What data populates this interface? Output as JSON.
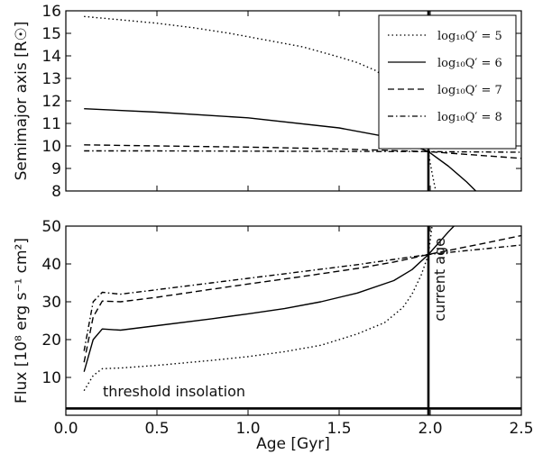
{
  "chart_data": [
    {
      "type": "line",
      "ylabel": "Semimajor axis [R☉]",
      "xlim": [
        0.0,
        2.5
      ],
      "ylim": [
        8,
        16
      ],
      "yticks": [
        8,
        9,
        10,
        11,
        12,
        13,
        14,
        15,
        16
      ],
      "ytick_labels": [
        "8",
        "9",
        "10",
        "11",
        "12",
        "13",
        "14",
        "15",
        "16"
      ],
      "legend_position": "top-right",
      "series": [
        {
          "name": "log₁₀Q′ = 5",
          "style": "dotted",
          "x": [
            0.1,
            0.3,
            0.5,
            0.7,
            0.9,
            1.1,
            1.3,
            1.5,
            1.6,
            1.7,
            1.8,
            1.9,
            1.95,
            1.99,
            2.01,
            2.03
          ],
          "y": [
            15.75,
            15.6,
            15.45,
            15.25,
            15.0,
            14.7,
            14.4,
            13.95,
            13.7,
            13.35,
            12.8,
            11.85,
            11.0,
            9.7,
            8.8,
            8.0
          ]
        },
        {
          "name": "log₁₀Q′ = 6",
          "style": "solid",
          "x": [
            0.1,
            0.5,
            1.0,
            1.5,
            1.8,
            1.99,
            2.1,
            2.2,
            2.25
          ],
          "y": [
            11.65,
            11.5,
            11.25,
            10.8,
            10.35,
            9.75,
            9.1,
            8.4,
            8.0
          ]
        },
        {
          "name": "log₁₀Q′ = 7",
          "style": "dashed",
          "x": [
            0.1,
            0.5,
            1.0,
            1.5,
            1.99,
            2.5
          ],
          "y": [
            10.05,
            10.0,
            9.95,
            9.87,
            9.75,
            9.45
          ]
        },
        {
          "name": "log₁₀Q′ = 8",
          "style": "dashdot",
          "x": [
            0.1,
            0.5,
            1.0,
            1.5,
            1.99,
            2.5
          ],
          "y": [
            9.78,
            9.78,
            9.77,
            9.76,
            9.75,
            9.72
          ]
        }
      ]
    },
    {
      "type": "line",
      "xlabel": "Age [Gyr]",
      "ylabel": "Flux [10⁸ erg s⁻¹ cm²]",
      "xlim": [
        0.0,
        2.5
      ],
      "ylim": [
        0,
        50
      ],
      "xticks": [
        0.0,
        0.5,
        1.0,
        1.5,
        2.0,
        2.5
      ],
      "xtick_labels": [
        "0.0",
        "0.5",
        "1.0",
        "1.5",
        "2.0",
        "2.5"
      ],
      "yticks": [
        10,
        20,
        30,
        40,
        50
      ],
      "ytick_labels": [
        "10",
        "20",
        "30",
        "40",
        "50"
      ],
      "series": [
        {
          "name": "log₁₀Q′ = 5",
          "style": "dotted",
          "x": [
            0.1,
            0.15,
            0.2,
            0.3,
            0.5,
            0.8,
            1.0,
            1.2,
            1.4,
            1.6,
            1.75,
            1.85,
            1.9,
            1.95,
            1.99,
            2.01
          ],
          "y": [
            6.5,
            10.5,
            12.3,
            12.5,
            13.2,
            14.5,
            15.5,
            16.8,
            18.5,
            21.5,
            24.5,
            28.5,
            32.0,
            37.0,
            42.5,
            50.0
          ]
        },
        {
          "name": "log₁₀Q′ = 6",
          "style": "solid",
          "x": [
            0.1,
            0.15,
            0.2,
            0.3,
            0.5,
            0.8,
            1.0,
            1.2,
            1.4,
            1.6,
            1.8,
            1.9,
            1.99,
            2.1,
            2.13
          ],
          "y": [
            11.5,
            20.0,
            22.8,
            22.5,
            23.7,
            25.5,
            26.8,
            28.2,
            30.0,
            32.3,
            35.6,
            38.5,
            42.5,
            48.5,
            50.0
          ]
        },
        {
          "name": "log₁₀Q′ = 7",
          "style": "dashed",
          "x": [
            0.1,
            0.15,
            0.2,
            0.3,
            0.5,
            0.8,
            1.0,
            1.3,
            1.6,
            1.8,
            1.99,
            2.3,
            2.5
          ],
          "y": [
            14.0,
            26.0,
            30.2,
            30.0,
            31.2,
            33.3,
            34.7,
            36.7,
            38.8,
            40.5,
            42.5,
            45.5,
            47.5
          ]
        },
        {
          "name": "log₁₀Q′ = 8",
          "style": "dashdot",
          "x": [
            0.1,
            0.15,
            0.2,
            0.3,
            0.5,
            0.8,
            1.0,
            1.3,
            1.6,
            1.8,
            1.99,
            2.3,
            2.5
          ],
          "y": [
            17.0,
            30.0,
            32.5,
            32.0,
            33.2,
            35.0,
            36.2,
            38.0,
            39.8,
            41.2,
            42.5,
            44.0,
            45.0
          ]
        }
      ],
      "annotations": [
        {
          "text": "threshold insolation",
          "type": "hline",
          "y": 1.8
        },
        {
          "text": "current age",
          "type": "vline",
          "x": 1.99
        }
      ]
    }
  ]
}
